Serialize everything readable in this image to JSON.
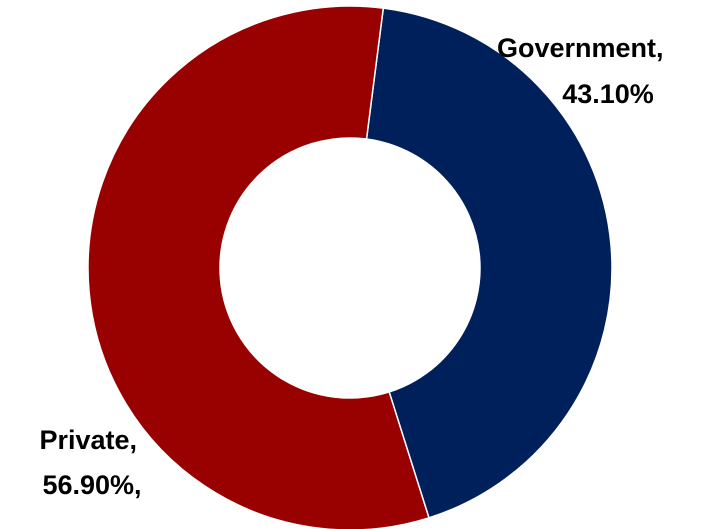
{
  "chart_data": {
    "type": "pie",
    "variant": "donut",
    "title": "",
    "categories": [
      "Government",
      "Private"
    ],
    "values": [
      43.1,
      56.9
    ],
    "unit": "%",
    "colors": [
      "#00205B",
      "#990000"
    ],
    "data_labels": [
      {
        "lines": [
          "Government,",
          "43.10%"
        ]
      },
      {
        "lines": [
          "Private,",
          "56.90%,"
        ]
      }
    ],
    "legend": "none",
    "grid": false
  }
}
